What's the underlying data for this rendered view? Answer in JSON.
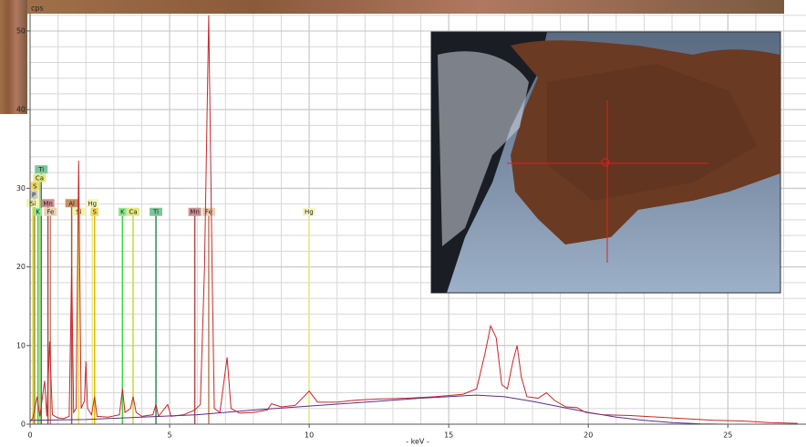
{
  "chart_data": {
    "type": "line",
    "y_label": "cps",
    "x_label": "- keV -",
    "xlim": [
      0,
      27.8
    ],
    "ylim": [
      0,
      52.2
    ],
    "xticks": [
      0,
      5,
      10,
      15,
      20,
      25
    ],
    "yticks": [
      0,
      10,
      20,
      30,
      40,
      50
    ],
    "grid": true,
    "x_minor_step": 1,
    "y_minor_step": 2,
    "series": [
      {
        "color": "#c8262a",
        "x": [
          0.0,
          0.1,
          0.25,
          0.35,
          0.52,
          0.6,
          0.7,
          0.8,
          1.0,
          1.2,
          1.4,
          1.49,
          1.56,
          1.65,
          1.74,
          1.83,
          1.95,
          2.0,
          2.06,
          2.2,
          2.31,
          2.4,
          2.8,
          3.2,
          3.31,
          3.4,
          3.6,
          3.69,
          3.8,
          4.0,
          4.4,
          4.51,
          4.6,
          4.93,
          5.05,
          5.5,
          5.9,
          6.1,
          6.25,
          6.4,
          6.52,
          6.6,
          6.8,
          7.06,
          7.2,
          7.5,
          8.0,
          8.5,
          8.65,
          9.0,
          9.5,
          10.0,
          10.3,
          11.0,
          11.5,
          11.9,
          12.5,
          13.5,
          14.5,
          15.5,
          16.0,
          16.3,
          16.5,
          16.7,
          16.9,
          17.1,
          17.3,
          17.45,
          17.6,
          17.8,
          18.2,
          18.5,
          18.8,
          19.2,
          19.6,
          19.9,
          20.5,
          21.5,
          22.5,
          23.5,
          24.5,
          25.5,
          26.5,
          27.5
        ],
        "values": [
          0.3,
          0.8,
          3.5,
          1,
          5.5,
          1,
          10.5,
          1.2,
          0.8,
          0.7,
          1.0,
          20,
          1.5,
          2,
          33.5,
          2,
          3,
          8,
          2,
          1.2,
          3.5,
          1,
          0.9,
          1.2,
          4.5,
          1.5,
          2,
          3.5,
          1.5,
          1,
          1.2,
          2.5,
          1,
          2.5,
          1,
          1.2,
          1.8,
          2.5,
          20,
          52,
          20,
          2,
          1.5,
          8.5,
          2,
          1.4,
          1.5,
          1.8,
          2.6,
          2.2,
          2.4,
          4.2,
          2.8,
          2.8,
          3,
          3.1,
          3.2,
          3.3,
          3.5,
          3.8,
          4.5,
          9,
          12.5,
          11,
          5,
          4.5,
          8,
          10,
          6,
          3.5,
          3.3,
          4,
          3,
          2.2,
          2.1,
          1.5,
          1.2,
          1.1,
          0.9,
          0.7,
          0.5,
          0.4,
          0.2,
          0.1
        ]
      },
      {
        "color": "#5b2d86",
        "x": [
          0,
          2,
          4,
          6,
          8,
          10,
          12,
          14,
          16,
          17,
          18,
          19,
          20,
          21,
          22,
          23,
          24,
          25
        ],
        "values": [
          0.5,
          0.6,
          0.9,
          1.2,
          1.8,
          2.3,
          2.8,
          3.3,
          3.7,
          3.5,
          2.9,
          2.2,
          1.5,
          0.9,
          0.5,
          0.2,
          0.05,
          0
        ]
      }
    ],
    "markers": [
      {
        "label": "Ti",
        "energy": 0.4,
        "level": 32.4,
        "color": "#2f8a5a",
        "box": "#7cc79a"
      },
      {
        "label": "Ca",
        "energy": 0.34,
        "level": 31.3,
        "color": "#c8d83a",
        "box": "#e6e880"
      },
      {
        "label": "S",
        "energy": 0.17,
        "level": 30.3,
        "color": "#e0b800",
        "box": "#f0d860"
      },
      {
        "label": "P",
        "energy": 0.13,
        "level": 29.2,
        "color": "#909090",
        "box": "#c8c8c8"
      },
      {
        "label": "Si",
        "energy": 0.1,
        "level": 28.1,
        "color": "#e0e040",
        "box": "#f4f4a8"
      },
      {
        "label": "Mn",
        "energy": 0.64,
        "level": 28.1,
        "color": "#b04848",
        "box": "#d09090"
      },
      {
        "label": "K",
        "energy": 0.28,
        "level": 27,
        "color": "#3ad43a",
        "box": "#8fe88f"
      },
      {
        "label": "Fe",
        "energy": 0.73,
        "level": 27,
        "color": "#c08060",
        "box": "#ecd0b0"
      },
      {
        "label": "Al",
        "energy": 1.49,
        "level": 28.1,
        "color": "#a0602c",
        "box": "#c89060"
      },
      {
        "label": "Hg",
        "energy": 2.23,
        "level": 28.1,
        "color": "#e8e890",
        "box": "#f6f6c0"
      },
      {
        "label": "Si",
        "energy": 1.74,
        "level": 27,
        "color": "#e0e040",
        "box": "#f4f4a8"
      },
      {
        "label": "S",
        "energy": 2.31,
        "level": 27,
        "color": "#e0b800",
        "box": "#f0d860"
      },
      {
        "label": "K",
        "energy": 3.31,
        "level": 27,
        "color": "#3ad43a",
        "box": "#8fe88f"
      },
      {
        "label": "Ca",
        "energy": 3.69,
        "level": 27,
        "color": "#c8d83a",
        "box": "#e6e880"
      },
      {
        "label": "Ti",
        "energy": 4.51,
        "level": 27,
        "color": "#2f8a5a",
        "box": "#7cc79a"
      },
      {
        "label": "Mn",
        "energy": 5.9,
        "level": 27,
        "color": "#b04848",
        "box": "#d09090"
      },
      {
        "label": "Fe",
        "energy": 6.4,
        "level": 27,
        "color": "#c08060",
        "box": "#ecd0b0"
      },
      {
        "label": "Hg",
        "energy": 9.99,
        "level": 27,
        "color": "#e8e890",
        "box": "#f6f6c0"
      }
    ]
  }
}
